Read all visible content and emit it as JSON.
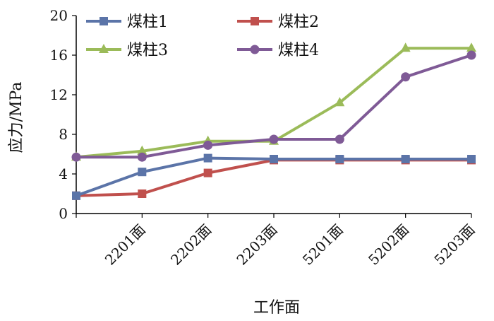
{
  "chart_data": {
    "type": "line",
    "categories": [
      "",
      "2201面",
      "2202面",
      "2203面",
      "5201面",
      "5202面",
      "5203面"
    ],
    "xlabel": "工作面",
    "ylabel": "应力/MPa",
    "ylim": [
      0,
      20
    ],
    "yticks": [
      "0",
      "4",
      "8",
      "12",
      "16",
      "20"
    ],
    "grid": false,
    "legend_position": "top",
    "series": [
      {
        "name": "煤柱1",
        "color": "#5b74a8",
        "marker": "square",
        "values": [
          1.8,
          4.2,
          5.6,
          5.5,
          5.5,
          5.5,
          5.5
        ]
      },
      {
        "name": "煤柱2",
        "color": "#c0504d",
        "marker": "square",
        "values": [
          1.8,
          2.0,
          4.1,
          5.4,
          5.4,
          5.4,
          5.4
        ]
      },
      {
        "name": "煤柱3",
        "color": "#9bbb59",
        "marker": "triangle",
        "values": [
          5.7,
          6.3,
          7.3,
          7.3,
          11.2,
          16.7,
          16.7
        ]
      },
      {
        "name": "煤柱4",
        "color": "#7f5a96",
        "marker": "circle",
        "values": [
          5.7,
          5.7,
          6.9,
          7.5,
          7.5,
          13.8,
          16.0
        ]
      }
    ]
  }
}
